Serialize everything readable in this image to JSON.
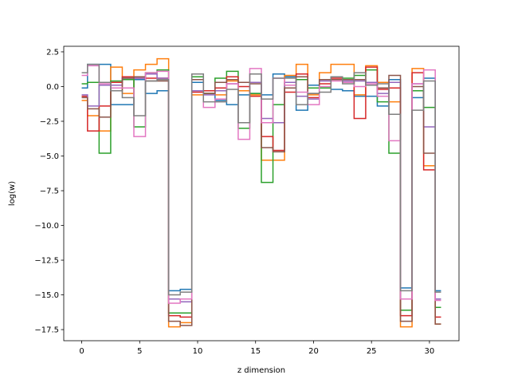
{
  "chart_data": {
    "type": "line",
    "drawstyle": "steps-mid",
    "title": "",
    "xlabel": "z dimension",
    "ylabel": "log(w)",
    "xlim": [
      -1.55,
      32.55
    ],
    "ylim": [
      -18.3,
      2.9
    ],
    "xticks": [
      0,
      5,
      10,
      15,
      20,
      25,
      30
    ],
    "xtick_labels": [
      "0",
      "5",
      "10",
      "15",
      "20",
      "25",
      "30"
    ],
    "yticks": [
      2.5,
      0.0,
      -2.5,
      -5.0,
      -7.5,
      -10.0,
      -12.5,
      -15.0,
      -17.5
    ],
    "ytick_labels": [
      "2.5",
      "0.0",
      "−2.5",
      "−5.0",
      "−7.5",
      "−10.0",
      "−12.5",
      "−15.0",
      "−17.5"
    ],
    "grid": false,
    "legend": "none",
    "x": [
      0,
      1,
      2,
      3,
      4,
      5,
      6,
      7,
      8,
      9,
      10,
      11,
      12,
      13,
      14,
      15,
      16,
      17,
      18,
      19,
      20,
      21,
      22,
      23,
      24,
      25,
      26,
      27,
      28,
      29,
      30,
      31
    ],
    "series": [
      {
        "color": "#1f77b4",
        "values": [
          -0.1,
          1.6,
          1.6,
          -1.3,
          -1.3,
          0.5,
          -0.5,
          -0.3,
          -14.7,
          -14.6,
          0.3,
          -0.5,
          -1.0,
          -1.3,
          -0.6,
          -0.5,
          -0.6,
          0.9,
          0.7,
          -1.7,
          0.1,
          -0.1,
          -0.2,
          -0.3,
          -0.7,
          -0.7,
          -1.4,
          0.5,
          -14.5,
          -0.8,
          0.6,
          -14.7
        ]
      },
      {
        "color": "#ff7f0e",
        "values": [
          -1.0,
          -2.1,
          -3.2,
          1.4,
          -0.5,
          1.2,
          1.6,
          2.0,
          -17.3,
          -17.0,
          -0.6,
          -0.5,
          -0.6,
          0.4,
          -0.3,
          -0.6,
          -5.3,
          -5.3,
          0.8,
          1.6,
          -0.6,
          1.0,
          1.6,
          1.6,
          -0.6,
          1.5,
          0.3,
          -1.1,
          -17.3,
          1.3,
          -5.7,
          -17.1
        ]
      },
      {
        "color": "#2ca02c",
        "values": [
          0.2,
          0.3,
          -4.8,
          0.4,
          0.5,
          -2.9,
          1.0,
          1.2,
          -16.3,
          -16.3,
          0.7,
          -0.5,
          0.6,
          1.1,
          -3.0,
          -0.5,
          -6.9,
          -1.3,
          0.3,
          0.5,
          -0.1,
          -0.1,
          0.5,
          0.6,
          0.8,
          1.2,
          -1.1,
          -4.8,
          -16.1,
          -0.3,
          -1.5,
          -15.9
        ]
      },
      {
        "color": "#d62728",
        "values": [
          -0.7,
          -3.2,
          -1.4,
          0.3,
          0.7,
          0.6,
          0.6,
          0.6,
          -16.5,
          -16.6,
          -0.4,
          -0.3,
          -0.1,
          0.7,
          0.0,
          -0.7,
          -3.6,
          -4.6,
          -0.4,
          0.9,
          -0.8,
          0.2,
          0.6,
          0.5,
          -2.3,
          1.4,
          -0.2,
          -0.1,
          -16.5,
          1.0,
          -6.0,
          -16.6
        ]
      },
      {
        "color": "#9467bd",
        "values": [
          -0.6,
          -1.4,
          0.1,
          0.1,
          0.6,
          0.6,
          0.9,
          0.6,
          -15.3,
          -15.5,
          -0.3,
          -0.6,
          -0.3,
          0.2,
          0.3,
          0.3,
          -2.3,
          -2.6,
          0.3,
          -0.7,
          -0.9,
          0.4,
          0.5,
          0.4,
          0.4,
          0.3,
          -0.5,
          0.3,
          -15.3,
          0.2,
          -2.9,
          -15.3
        ]
      },
      {
        "color": "#8c564b",
        "values": [
          -0.8,
          -1.6,
          -2.2,
          -0.3,
          0.6,
          0.7,
          0.4,
          0.4,
          -16.9,
          -17.2,
          0.5,
          -0.5,
          0.3,
          0.5,
          0.3,
          0.2,
          -4.4,
          -4.7,
          -0.1,
          0.7,
          -0.5,
          0.5,
          0.5,
          0.5,
          0.5,
          0.1,
          -0.1,
          0.8,
          -16.9,
          0.0,
          -4.8,
          -17.1
        ]
      },
      {
        "color": "#e377c2",
        "values": [
          0.8,
          1.5,
          0.2,
          -0.1,
          -0.1,
          -3.6,
          1.0,
          1.1,
          -15.6,
          -15.3,
          0.9,
          -1.5,
          -0.9,
          0.2,
          -3.8,
          1.3,
          -2.6,
          0.6,
          0.1,
          -0.4,
          -1.3,
          0.0,
          0.4,
          0.3,
          0.0,
          0.2,
          -0.7,
          -3.9,
          -15.3,
          0.2,
          1.2,
          -15.4
        ]
      },
      {
        "color": "#7f7f7f",
        "values": [
          1.0,
          1.6,
          0.3,
          -0.3,
          -0.8,
          -2.1,
          0.4,
          0.5,
          -15.0,
          -14.8,
          0.9,
          -1.1,
          -1.1,
          -0.2,
          -2.6,
          0.9,
          -0.9,
          0.6,
          0.6,
          -1.3,
          -0.5,
          -0.4,
          0.7,
          0.2,
          1.0,
          0.1,
          0.2,
          -2.0,
          -14.7,
          -1.7,
          0.4,
          -14.8
        ]
      }
    ]
  }
}
